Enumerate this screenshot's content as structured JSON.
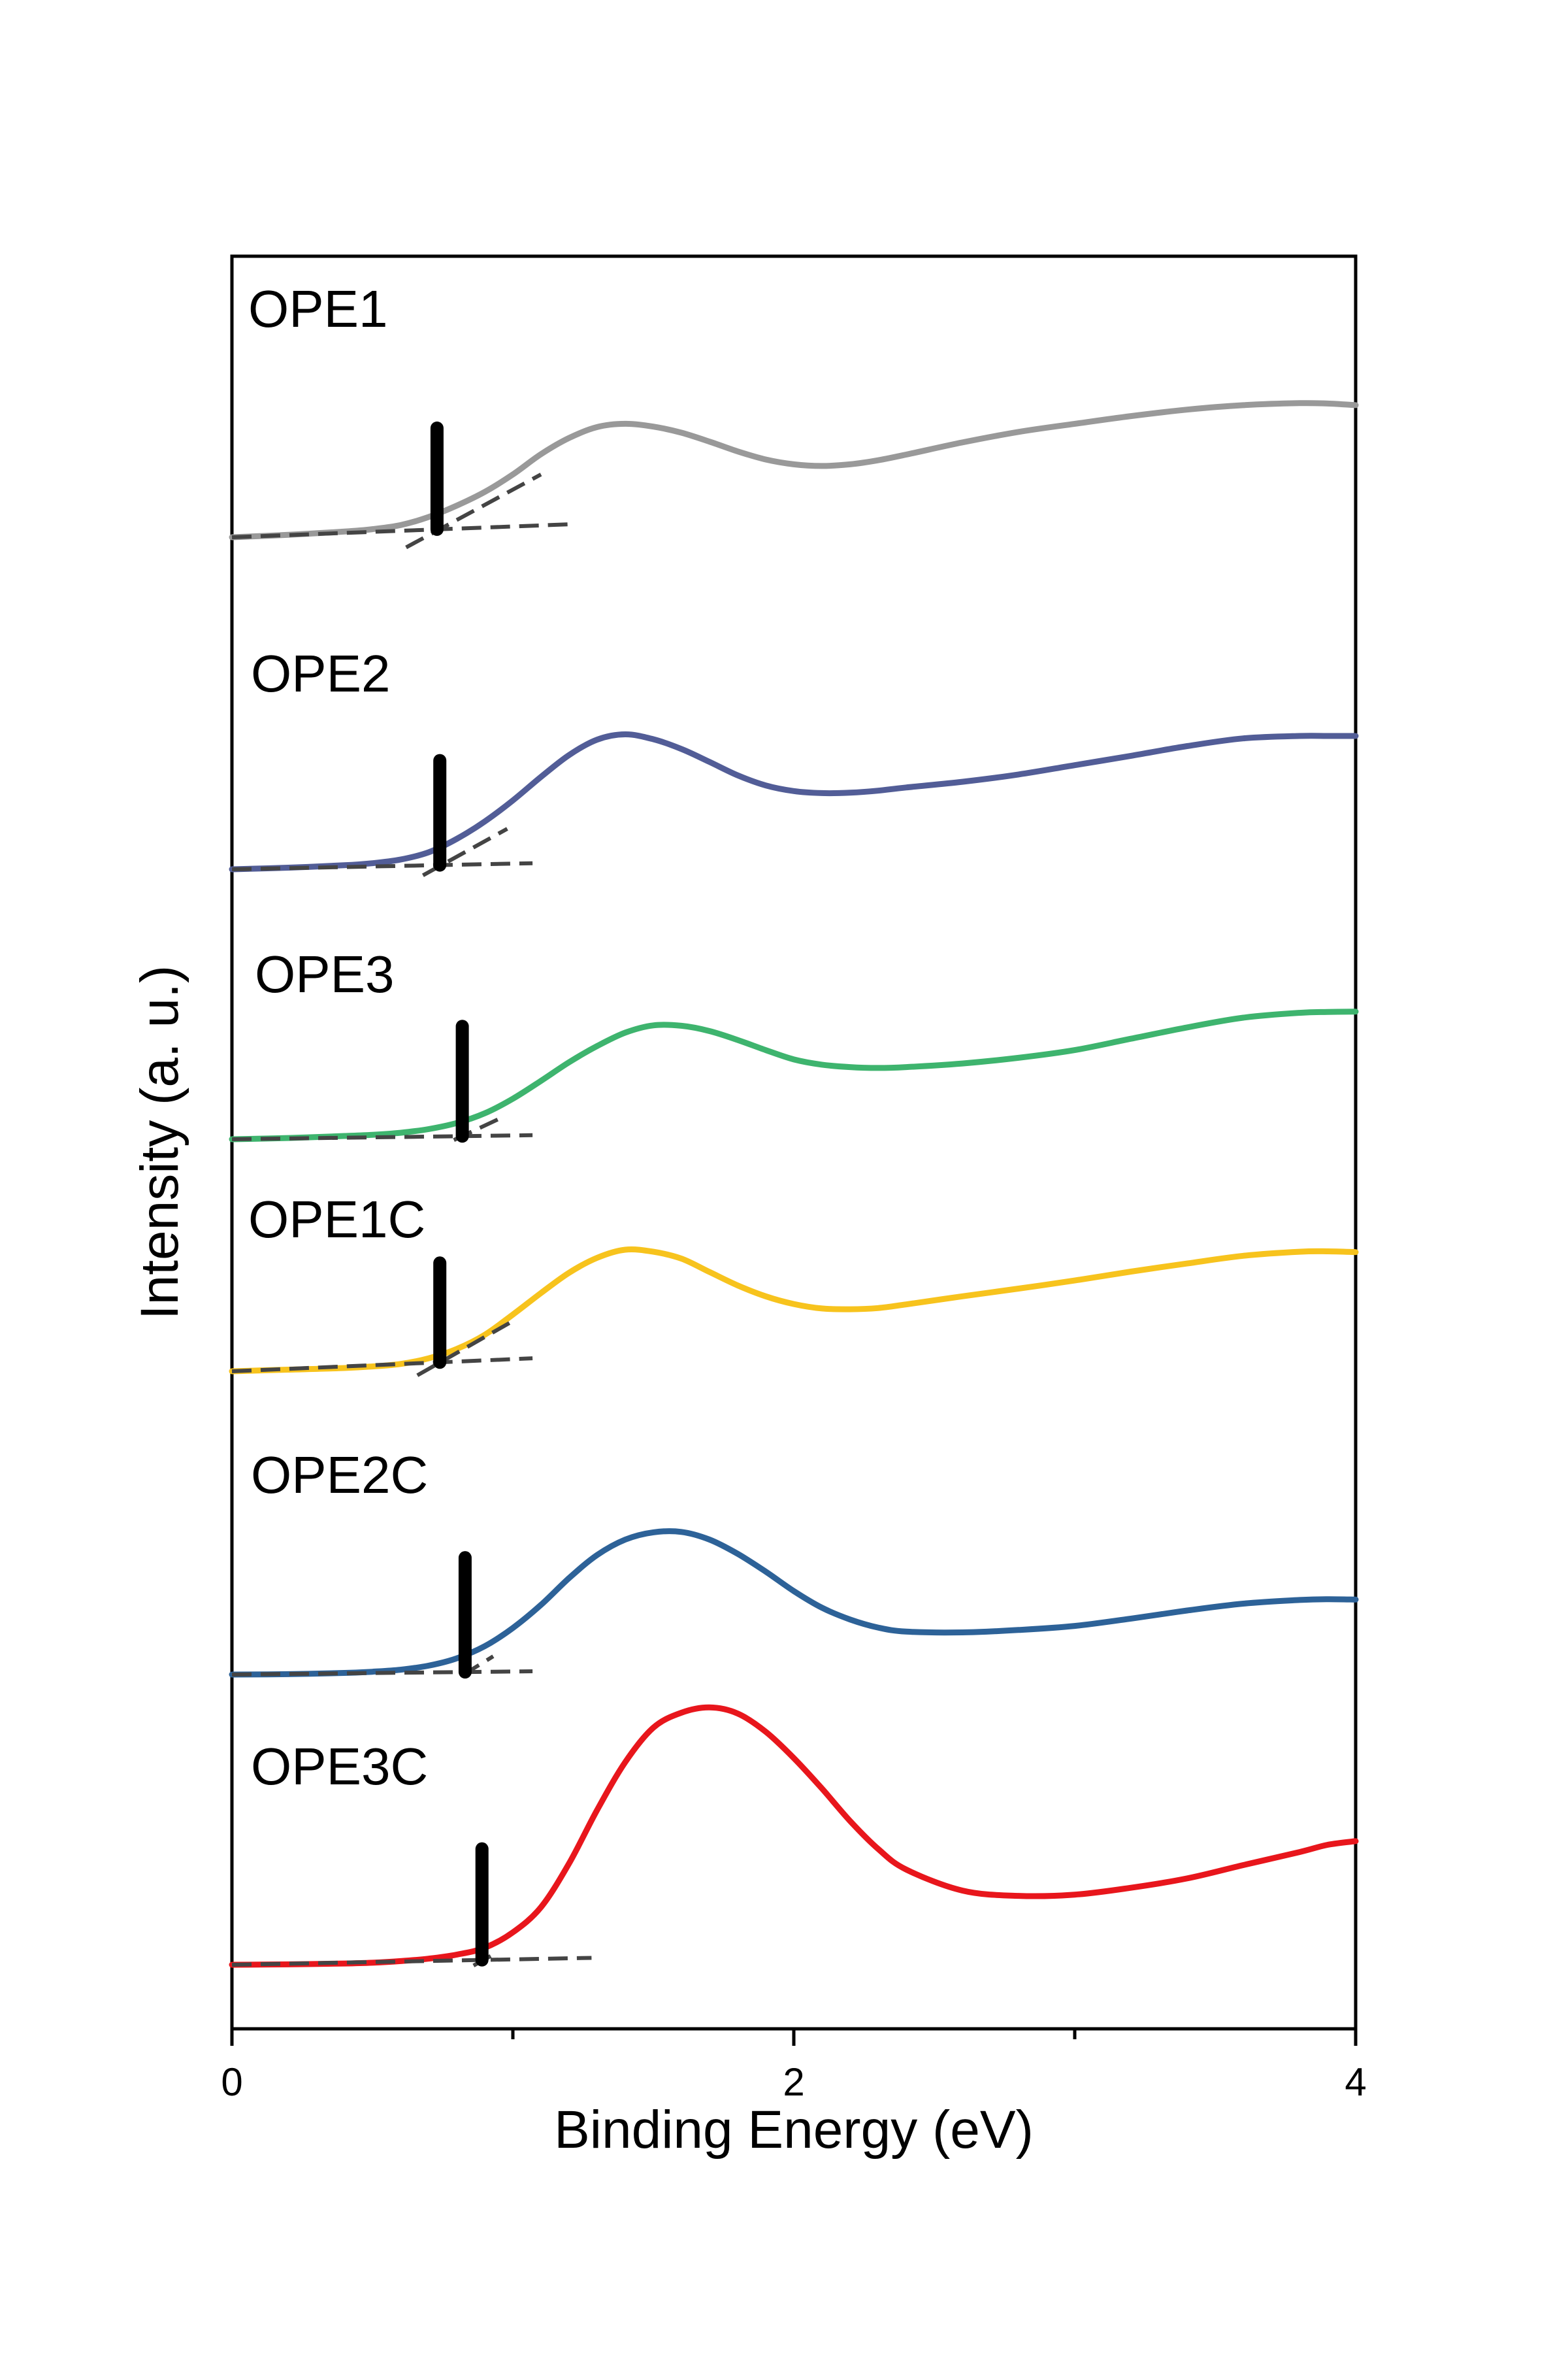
{
  "chart_data": {
    "type": "line",
    "title": "",
    "xlabel": "Binding Energy (eV)",
    "ylabel": "Intensity (a. u.)",
    "xlim": [
      0,
      4
    ],
    "x_ticks": [
      0,
      2,
      4
    ],
    "x_minor_ticks": [
      1,
      3
    ],
    "y_ticks": [],
    "grid": false,
    "stacked_offset": true,
    "series": [
      {
        "name": "OPE1",
        "color": "#999999",
        "onset": 0.73,
        "x": [
          0.0,
          0.2,
          0.4,
          0.5,
          0.6,
          0.7,
          0.8,
          0.9,
          1.0,
          1.1,
          1.2,
          1.3,
          1.4,
          1.5,
          1.6,
          1.7,
          1.8,
          1.9,
          2.0,
          2.1,
          2.2,
          2.3,
          2.4,
          2.6,
          2.8,
          3.0,
          3.2,
          3.4,
          3.6,
          3.8,
          3.9,
          4.0
        ],
        "y": [
          0.0,
          0.06,
          0.14,
          0.2,
          0.3,
          0.5,
          0.78,
          1.12,
          1.55,
          2.05,
          2.45,
          2.72,
          2.8,
          2.73,
          2.58,
          2.36,
          2.12,
          1.92,
          1.8,
          1.76,
          1.8,
          1.9,
          2.04,
          2.34,
          2.6,
          2.8,
          2.99,
          3.15,
          3.26,
          3.31,
          3.3,
          3.26
        ],
        "baseline": [
          [
            0.0,
            0.0
          ],
          [
            1.2,
            0.32
          ]
        ],
        "tangent": [
          [
            0.62,
            -0.25
          ],
          [
            1.1,
            1.55
          ]
        ]
      },
      {
        "name": "OPE2",
        "color": "#525d97",
        "onset": 0.74,
        "x": [
          0.0,
          0.2,
          0.4,
          0.5,
          0.6,
          0.7,
          0.8,
          0.9,
          1.0,
          1.1,
          1.2,
          1.3,
          1.4,
          1.5,
          1.6,
          1.7,
          1.8,
          1.9,
          2.0,
          2.1,
          2.2,
          2.3,
          2.4,
          2.6,
          2.8,
          3.0,
          3.2,
          3.4,
          3.6,
          3.8,
          3.9,
          4.0
        ],
        "y": [
          0.0,
          0.04,
          0.1,
          0.15,
          0.24,
          0.42,
          0.75,
          1.18,
          1.7,
          2.28,
          2.82,
          3.2,
          3.33,
          3.21,
          2.97,
          2.65,
          2.32,
          2.07,
          1.93,
          1.88,
          1.89,
          1.94,
          2.02,
          2.16,
          2.34,
          2.57,
          2.8,
          3.04,
          3.23,
          3.29,
          3.29,
          3.29
        ],
        "baseline": [
          [
            0.0,
            0.0
          ],
          [
            1.07,
            0.15
          ]
        ],
        "tangent": [
          [
            0.68,
            -0.15
          ],
          [
            0.98,
            1.0
          ]
        ]
      },
      {
        "name": "OPE3",
        "color": "#3eb46e",
        "onset": 0.82,
        "x": [
          0.0,
          0.2,
          0.4,
          0.5,
          0.6,
          0.7,
          0.8,
          0.9,
          1.0,
          1.1,
          1.2,
          1.3,
          1.4,
          1.5,
          1.6,
          1.7,
          1.8,
          1.9,
          2.0,
          2.1,
          2.2,
          2.3,
          2.4,
          2.6,
          2.8,
          3.0,
          3.2,
          3.4,
          3.6,
          3.8,
          3.9,
          4.0
        ],
        "y": [
          0.0,
          0.03,
          0.08,
          0.11,
          0.16,
          0.25,
          0.4,
          0.64,
          1.0,
          1.44,
          1.9,
          2.3,
          2.63,
          2.81,
          2.8,
          2.67,
          2.45,
          2.2,
          1.97,
          1.84,
          1.78,
          1.76,
          1.78,
          1.87,
          2.01,
          2.2,
          2.48,
          2.76,
          3.0,
          3.12,
          3.14,
          3.15
        ],
        "baseline": [
          [
            0.0,
            0.0
          ],
          [
            1.07,
            0.1
          ]
        ],
        "tangent": [
          [
            0.79,
            -0.02
          ],
          [
            0.95,
            0.5
          ]
        ]
      },
      {
        "name": "OPE1C",
        "color": "#f7c31d",
        "onset": 0.74,
        "x": [
          0.0,
          0.2,
          0.4,
          0.5,
          0.6,
          0.7,
          0.8,
          0.9,
          1.0,
          1.1,
          1.2,
          1.3,
          1.4,
          1.5,
          1.6,
          1.7,
          1.8,
          1.9,
          2.0,
          2.1,
          2.2,
          2.3,
          2.4,
          2.6,
          2.8,
          3.0,
          3.2,
          3.4,
          3.6,
          3.8,
          3.9,
          4.0
        ],
        "y": [
          0.0,
          0.04,
          0.08,
          0.12,
          0.18,
          0.32,
          0.55,
          0.9,
          1.4,
          1.93,
          2.43,
          2.8,
          3.0,
          2.95,
          2.78,
          2.45,
          2.12,
          1.85,
          1.66,
          1.55,
          1.53,
          1.56,
          1.65,
          1.85,
          2.04,
          2.24,
          2.46,
          2.66,
          2.85,
          2.95,
          2.96,
          2.94
        ],
        "baseline": [
          [
            0.0,
            0.0
          ],
          [
            1.07,
            0.32
          ]
        ],
        "tangent": [
          [
            0.66,
            -0.1
          ],
          [
            0.99,
            1.2
          ]
        ]
      },
      {
        "name": "OPE2C",
        "color": "#2d6298",
        "onset": 0.83,
        "x": [
          0.0,
          0.2,
          0.4,
          0.5,
          0.6,
          0.7,
          0.8,
          0.9,
          1.0,
          1.1,
          1.2,
          1.3,
          1.4,
          1.5,
          1.6,
          1.7,
          1.8,
          1.9,
          2.0,
          2.1,
          2.2,
          2.3,
          2.4,
          2.6,
          2.8,
          3.0,
          3.2,
          3.4,
          3.6,
          3.8,
          3.9,
          4.0
        ],
        "y": [
          0.0,
          0.01,
          0.04,
          0.07,
          0.12,
          0.22,
          0.4,
          0.7,
          1.15,
          1.72,
          2.38,
          2.95,
          3.33,
          3.51,
          3.52,
          3.33,
          2.98,
          2.54,
          2.06,
          1.65,
          1.36,
          1.16,
          1.06,
          1.04,
          1.1,
          1.2,
          1.38,
          1.58,
          1.75,
          1.84,
          1.86,
          1.85
        ],
        "baseline": [
          [
            0.0,
            0.0
          ],
          [
            1.07,
            0.08
          ]
        ],
        "tangent": [
          [
            0.82,
            -0.02
          ],
          [
            0.93,
            0.45
          ]
        ]
      },
      {
        "name": "OPE3C",
        "color": "#e8161c",
        "onset": 0.89,
        "x": [
          0.0,
          0.2,
          0.4,
          0.5,
          0.6,
          0.7,
          0.8,
          0.9,
          1.0,
          1.1,
          1.2,
          1.3,
          1.4,
          1.5,
          1.6,
          1.7,
          1.8,
          1.9,
          2.0,
          2.1,
          2.2,
          2.3,
          2.4,
          2.6,
          2.8,
          3.0,
          3.2,
          3.4,
          3.6,
          3.8,
          3.9,
          4.0
        ],
        "y": [
          0.0,
          0.01,
          0.03,
          0.05,
          0.09,
          0.15,
          0.25,
          0.42,
          0.8,
          1.42,
          2.5,
          3.82,
          5.0,
          5.85,
          6.22,
          6.35,
          6.2,
          5.75,
          5.1,
          4.35,
          3.55,
          2.86,
          2.35,
          1.83,
          1.7,
          1.73,
          1.9,
          2.13,
          2.46,
          2.78,
          2.96,
          3.05
        ],
        "baseline": [
          [
            0.0,
            0.0
          ],
          [
            1.28,
            0.17
          ]
        ],
        "tangent": [
          [
            0.86,
            -0.02
          ],
          [
            0.93,
            0.25
          ]
        ]
      }
    ]
  }
}
